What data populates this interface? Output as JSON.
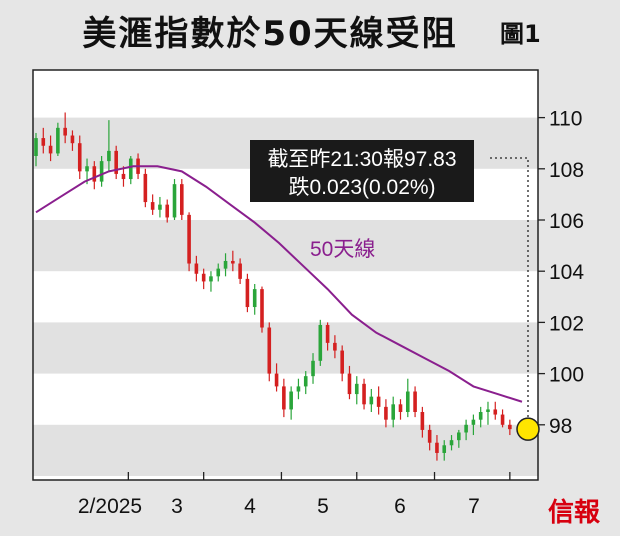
{
  "header": {
    "title": "美滙指數於50天線受阻",
    "figure_label": "圖1"
  },
  "chart_data": {
    "type": "candlestick",
    "ylim": [
      96,
      112
    ],
    "y_ticks": [
      98,
      100,
      102,
      104,
      106,
      108,
      110
    ],
    "x_ticks": [
      "2/2025",
      "3",
      "4",
      "5",
      "6",
      "7"
    ],
    "grid": "alternating horizontal bands",
    "annotation": {
      "line1": "截至昨21:30報97.83",
      "line2": "跌0.023(0.02%)"
    },
    "last_value": 97.83,
    "ma_label": "50天線",
    "ma50": [
      [
        0,
        106.3
      ],
      [
        10,
        106.9
      ],
      [
        20,
        107.5
      ],
      [
        30,
        107.9
      ],
      [
        40,
        108.1
      ],
      [
        50,
        108.1
      ],
      [
        60,
        107.9
      ],
      [
        70,
        107.3
      ],
      [
        80,
        106.6
      ],
      [
        90,
        105.9
      ],
      [
        100,
        105.1
      ],
      [
        110,
        104.2
      ],
      [
        120,
        103.3
      ],
      [
        130,
        102.3
      ],
      [
        140,
        101.6
      ],
      [
        150,
        101.1
      ],
      [
        160,
        100.6
      ],
      [
        170,
        100.1
      ],
      [
        180,
        99.5
      ],
      [
        190,
        99.2
      ],
      [
        200,
        98.9
      ]
    ],
    "candles": [
      [
        0,
        108.5,
        109.4,
        108.1,
        109.2
      ],
      [
        3,
        109.2,
        109.6,
        108.6,
        108.9
      ],
      [
        6,
        108.9,
        109.3,
        108.3,
        108.6
      ],
      [
        9,
        108.6,
        109.8,
        108.5,
        109.6
      ],
      [
        12,
        109.6,
        110.2,
        109.0,
        109.3
      ],
      [
        15,
        109.3,
        109.5,
        108.7,
        109.0
      ],
      [
        18,
        109.0,
        109.3,
        107.6,
        107.9
      ],
      [
        21,
        107.9,
        108.4,
        107.4,
        108.1
      ],
      [
        24,
        108.1,
        108.3,
        107.2,
        107.5
      ],
      [
        27,
        107.5,
        108.5,
        107.3,
        108.3
      ],
      [
        30,
        108.3,
        109.9,
        107.9,
        108.7
      ],
      [
        33,
        108.7,
        108.9,
        107.6,
        107.8
      ],
      [
        36,
        107.8,
        108.1,
        107.3,
        107.6
      ],
      [
        39,
        107.6,
        108.5,
        107.4,
        108.4
      ],
      [
        42,
        108.4,
        108.6,
        107.6,
        107.8
      ],
      [
        45,
        107.8,
        108.0,
        106.5,
        106.7
      ],
      [
        48,
        106.7,
        107.0,
        106.2,
        106.4
      ],
      [
        51,
        106.4,
        106.9,
        106.1,
        106.6
      ],
      [
        54,
        106.6,
        106.8,
        105.9,
        106.1
      ],
      [
        57,
        106.1,
        107.6,
        106.0,
        107.4
      ],
      [
        60,
        107.4,
        107.6,
        106.0,
        106.2
      ],
      [
        63,
        106.2,
        106.3,
        104.0,
        104.3
      ],
      [
        66,
        104.3,
        104.6,
        103.6,
        103.9
      ],
      [
        69,
        103.9,
        104.1,
        103.3,
        103.6
      ],
      [
        72,
        103.6,
        104.0,
        103.2,
        103.8
      ],
      [
        75,
        103.8,
        104.3,
        103.6,
        104.1
      ],
      [
        78,
        104.1,
        104.7,
        103.8,
        104.4
      ],
      [
        81,
        104.4,
        104.8,
        104.0,
        104.3
      ],
      [
        84,
        104.3,
        104.5,
        103.5,
        103.7
      ],
      [
        87,
        103.7,
        103.9,
        102.4,
        102.6
      ],
      [
        90,
        102.6,
        103.5,
        102.3,
        103.3
      ],
      [
        93,
        103.3,
        103.4,
        101.6,
        101.8
      ],
      [
        96,
        101.8,
        102.0,
        99.7,
        100.0
      ],
      [
        99,
        100.0,
        100.4,
        99.3,
        99.5
      ],
      [
        102,
        99.5,
        99.8,
        98.3,
        98.6
      ],
      [
        105,
        98.6,
        99.5,
        98.2,
        99.3
      ],
      [
        108,
        99.3,
        99.8,
        99.0,
        99.5
      ],
      [
        111,
        99.5,
        100.1,
        99.2,
        99.9
      ],
      [
        114,
        99.9,
        100.8,
        99.6,
        100.5
      ],
      [
        117,
        100.5,
        102.1,
        100.3,
        101.9
      ],
      [
        120,
        101.9,
        102.0,
        100.9,
        101.2
      ],
      [
        123,
        101.2,
        101.5,
        100.6,
        100.9
      ],
      [
        126,
        100.9,
        101.1,
        99.7,
        100.0
      ],
      [
        129,
        100.0,
        100.3,
        99.0,
        99.2
      ],
      [
        132,
        99.2,
        99.9,
        98.8,
        99.6
      ],
      [
        135,
        99.6,
        99.8,
        98.6,
        98.8
      ],
      [
        138,
        98.8,
        99.4,
        98.5,
        99.1
      ],
      [
        141,
        99.1,
        99.5,
        98.4,
        98.7
      ],
      [
        144,
        98.7,
        99.0,
        97.9,
        98.2
      ],
      [
        147,
        98.2,
        99.1,
        97.9,
        98.8
      ],
      [
        150,
        98.8,
        99.0,
        98.2,
        98.5
      ],
      [
        153,
        98.5,
        99.8,
        98.3,
        99.3
      ],
      [
        156,
        99.3,
        99.5,
        98.3,
        98.5
      ],
      [
        159,
        98.5,
        98.7,
        97.5,
        97.8
      ],
      [
        162,
        97.8,
        98.0,
        97.0,
        97.3
      ],
      [
        165,
        97.3,
        97.6,
        96.6,
        96.9
      ],
      [
        168,
        96.9,
        97.4,
        96.6,
        97.2
      ],
      [
        171,
        97.2,
        97.6,
        97.0,
        97.4
      ],
      [
        174,
        97.4,
        97.8,
        97.1,
        97.7
      ],
      [
        177,
        97.7,
        98.2,
        97.4,
        98.0
      ],
      [
        180,
        98.0,
        98.4,
        97.6,
        98.2
      ],
      [
        183,
        98.2,
        98.7,
        97.9,
        98.5
      ],
      [
        186,
        98.5,
        98.9,
        98.0,
        98.6
      ],
      [
        189,
        98.6,
        98.9,
        98.2,
        98.4
      ],
      [
        192,
        98.4,
        98.6,
        97.9,
        98.0
      ],
      [
        195,
        98.0,
        98.2,
        97.6,
        97.83
      ]
    ]
  }
}
